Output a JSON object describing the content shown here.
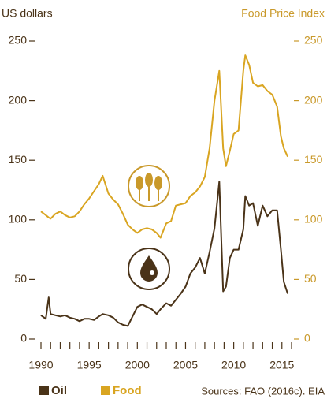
{
  "chart_data": {
    "type": "line",
    "y_label": "US dollars",
    "y2_label": "Food Price Index",
    "source": "Sources: FAO (2016c). EIA",
    "x": [
      1990,
      1990.5,
      1990.8,
      1991,
      1991.5,
      1992,
      1992.5,
      1993,
      1993.5,
      1994,
      1994.5,
      1995,
      1995.5,
      1996,
      1996.4,
      1997,
      1997.5,
      1998,
      1998.5,
      1999,
      1999.5,
      2000,
      2000.5,
      2001,
      2001.5,
      2002,
      2002.4,
      2003,
      2003.5,
      2004,
      2004.5,
      2005,
      2005.5,
      2006,
      2006.5,
      2007,
      2007.5,
      2008,
      2008.5,
      2008.9,
      2009.2,
      2009.6,
      2010,
      2010.5,
      2011,
      2011.2,
      2011.6,
      2012,
      2012.5,
      2013,
      2013.5,
      2014,
      2014.5,
      2014.9,
      2015.2,
      2015.6
    ],
    "series": [
      {
        "name": "Oil",
        "color": "#4a3318",
        "axis": "y",
        "values": [
          20,
          17,
          35,
          21,
          20,
          19,
          20,
          18,
          17,
          15,
          17,
          17,
          16,
          19,
          21,
          20,
          18,
          14,
          12,
          11,
          19,
          27,
          29,
          27,
          25,
          21,
          25,
          30,
          28,
          33,
          38,
          44,
          55,
          60,
          68,
          55,
          73,
          93,
          132,
          40,
          44,
          68,
          75,
          75,
          92,
          120,
          112,
          114,
          95,
          112,
          103,
          108,
          108,
          75,
          48,
          38
        ]
      },
      {
        "name": "Food",
        "color": "#d9a521",
        "axis": "y2",
        "values": [
          107,
          104,
          102,
          101,
          105,
          107,
          104,
          102,
          103,
          107,
          113,
          118,
          124,
          130,
          137,
          122,
          117,
          113,
          105,
          96,
          92,
          89,
          92,
          93,
          92,
          89,
          85,
          97,
          99,
          112,
          113,
          114,
          120,
          123,
          128,
          136,
          160,
          200,
          225,
          160,
          145,
          158,
          172,
          175,
          225,
          238,
          230,
          215,
          212,
          213,
          208,
          205,
          195,
          170,
          160,
          153
        ]
      }
    ],
    "xlim": [
      1990,
      2016
    ],
    "xticks": [
      1990,
      1995,
      2000,
      2005,
      2010,
      2015
    ],
    "xminor_ticks": [
      1991,
      1992,
      1993,
      1994,
      1996,
      1997,
      1998,
      1999,
      2001,
      2002,
      2003,
      2004,
      2006,
      2007,
      2008,
      2009,
      2011,
      2012,
      2013,
      2014,
      2016
    ],
    "ylim": [
      0,
      250
    ],
    "yticks": [
      0,
      50,
      100,
      150,
      200,
      250
    ],
    "y2lim": [
      0,
      250
    ],
    "y2ticks": [
      0,
      50,
      100,
      150,
      200,
      250
    ]
  }
}
